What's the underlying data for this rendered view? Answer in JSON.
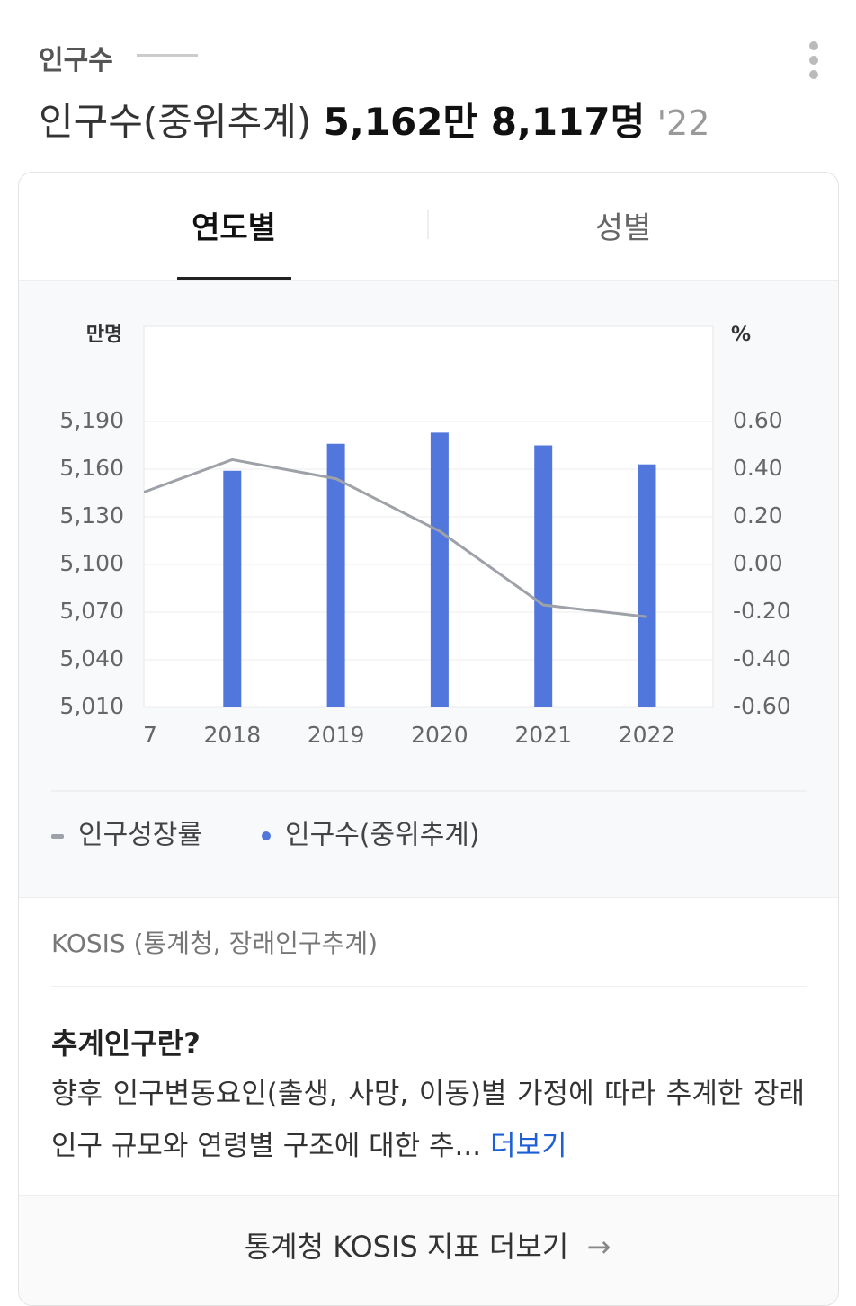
{
  "header": {
    "category": "인구수",
    "title": "인구수(중위추계)",
    "value": "5,162만 8,117명",
    "year": "'22"
  },
  "tabs": [
    "연도별",
    "성별"
  ],
  "chart_data": {
    "type": "bar",
    "y_label": "만명",
    "y2_label": "%",
    "categories": [
      "7",
      "2018",
      "2019",
      "2020",
      "2021",
      "2022"
    ],
    "series": [
      {
        "name": "인구성장률",
        "type": "line",
        "axis": "y2",
        "color": "#9ea2a8",
        "values": [
          0.28,
          0.44,
          0.36,
          0.14,
          -0.17,
          -0.22
        ]
      },
      {
        "name": "인구수(중위추계)",
        "type": "bar",
        "color": "#5176dc",
        "values": [
          null,
          5159,
          5176,
          5183,
          5175,
          5163
        ]
      }
    ],
    "ylim": [
      5010,
      5250
    ],
    "yticks": [
      {
        "value": 5010,
        "label": "5,010"
      },
      {
        "value": 5040,
        "label": "5,040"
      },
      {
        "value": 5070,
        "label": "5,070"
      },
      {
        "value": 5100,
        "label": "5,100"
      },
      {
        "value": 5130,
        "label": "5,130"
      },
      {
        "value": 5160,
        "label": "5,160"
      },
      {
        "value": 5190,
        "label": "5,190"
      }
    ],
    "y2lim": [
      -0.6,
      1.0
    ],
    "y2ticks": [
      {
        "value": -0.6,
        "label": "-0.60"
      },
      {
        "value": -0.4,
        "label": "-0.40"
      },
      {
        "value": -0.2,
        "label": "-0.20"
      },
      {
        "value": 0,
        "label": "0.00"
      },
      {
        "value": 0.2,
        "label": "0.20"
      },
      {
        "value": 0.4,
        "label": "0.40"
      },
      {
        "value": 0.6,
        "label": "0.60"
      }
    ],
    "grid": true
  },
  "source": "KOSIS (통계청, 장래인구추계)",
  "description": {
    "title": "추계인구란?",
    "text": "향후 인구변동요인(출생, 사망, 이동)별 가정에 따라 추계한 장래인구 규모와 연령별 구조에 대한 추...",
    "more": "더보기"
  },
  "footer": "통계청 KOSIS 지표 더보기"
}
